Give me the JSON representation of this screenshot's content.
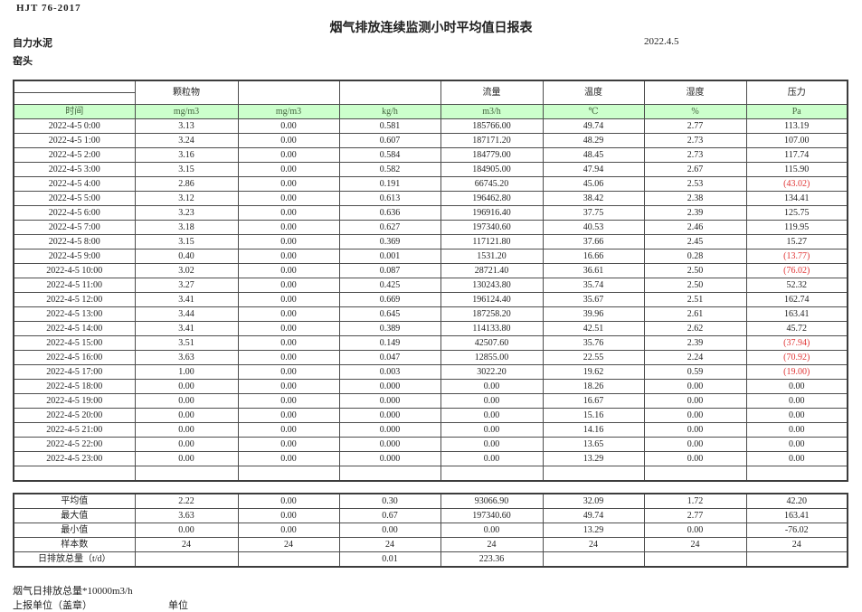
{
  "page": {
    "doc_code": "HJT  76-2017",
    "title": "烟气排放连续监测小时平均值日报表",
    "company": "自力水泥",
    "date": "2022.4.5",
    "station": "窑头"
  },
  "table": {
    "group_headers": [
      "",
      "颗粒物",
      "",
      "",
      "流量",
      "温度",
      "湿度",
      "压力"
    ],
    "unit_row": [
      "时间",
      "mg/m3",
      "mg/m3",
      "kg/h",
      "m3/h",
      "℃",
      "%",
      "Pa"
    ],
    "rows": [
      [
        "2022-4-5 0:00",
        "3.13",
        "0.00",
        "0.581",
        "185766.00",
        "49.74",
        "2.77",
        "113.19"
      ],
      [
        "2022-4-5 1:00",
        "3.24",
        "0.00",
        "0.607",
        "187171.20",
        "48.29",
        "2.73",
        "107.00"
      ],
      [
        "2022-4-5 2:00",
        "3.16",
        "0.00",
        "0.584",
        "184779.00",
        "48.45",
        "2.73",
        "117.74"
      ],
      [
        "2022-4-5 3:00",
        "3.15",
        "0.00",
        "0.582",
        "184905.00",
        "47.94",
        "2.67",
        "115.90"
      ],
      [
        "2022-4-5 4:00",
        "2.86",
        "0.00",
        "0.191",
        "66745.20",
        "45.06",
        "2.53",
        "(43.02)"
      ],
      [
        "2022-4-5 5:00",
        "3.12",
        "0.00",
        "0.613",
        "196462.80",
        "38.42",
        "2.38",
        "134.41"
      ],
      [
        "2022-4-5 6:00",
        "3.23",
        "0.00",
        "0.636",
        "196916.40",
        "37.75",
        "2.39",
        "125.75"
      ],
      [
        "2022-4-5 7:00",
        "3.18",
        "0.00",
        "0.627",
        "197340.60",
        "40.53",
        "2.46",
        "119.95"
      ],
      [
        "2022-4-5 8:00",
        "3.15",
        "0.00",
        "0.369",
        "117121.80",
        "37.66",
        "2.45",
        "15.27"
      ],
      [
        "2022-4-5 9:00",
        "0.40",
        "0.00",
        "0.001",
        "1531.20",
        "16.66",
        "0.28",
        "(13.77)"
      ],
      [
        "2022-4-5 10:00",
        "3.02",
        "0.00",
        "0.087",
        "28721.40",
        "36.61",
        "2.50",
        "(76.02)"
      ],
      [
        "2022-4-5 11:00",
        "3.27",
        "0.00",
        "0.425",
        "130243.80",
        "35.74",
        "2.50",
        "52.32"
      ],
      [
        "2022-4-5 12:00",
        "3.41",
        "0.00",
        "0.669",
        "196124.40",
        "35.67",
        "2.51",
        "162.74"
      ],
      [
        "2022-4-5 13:00",
        "3.44",
        "0.00",
        "0.645",
        "187258.20",
        "39.96",
        "2.61",
        "163.41"
      ],
      [
        "2022-4-5 14:00",
        "3.41",
        "0.00",
        "0.389",
        "114133.80",
        "42.51",
        "2.62",
        "45.72"
      ],
      [
        "2022-4-5 15:00",
        "3.51",
        "0.00",
        "0.149",
        "42507.60",
        "35.76",
        "2.39",
        "(37.94)"
      ],
      [
        "2022-4-5 16:00",
        "3.63",
        "0.00",
        "0.047",
        "12855.00",
        "22.55",
        "2.24",
        "(70.92)"
      ],
      [
        "2022-4-5 17:00",
        "1.00",
        "0.00",
        "0.003",
        "3022.20",
        "19.62",
        "0.59",
        "(19.00)"
      ],
      [
        "2022-4-5 18:00",
        "0.00",
        "0.00",
        "0.000",
        "0.00",
        "18.26",
        "0.00",
        "0.00"
      ],
      [
        "2022-4-5 19:00",
        "0.00",
        "0.00",
        "0.000",
        "0.00",
        "16.67",
        "0.00",
        "0.00"
      ],
      [
        "2022-4-5 20:00",
        "0.00",
        "0.00",
        "0.000",
        "0.00",
        "15.16",
        "0.00",
        "0.00"
      ],
      [
        "2022-4-5 21:00",
        "0.00",
        "0.00",
        "0.000",
        "0.00",
        "14.16",
        "0.00",
        "0.00"
      ],
      [
        "2022-4-5 22:00",
        "0.00",
        "0.00",
        "0.000",
        "0.00",
        "13.65",
        "0.00",
        "0.00"
      ],
      [
        "2022-4-5 23:00",
        "0.00",
        "0.00",
        "0.000",
        "0.00",
        "13.29",
        "0.00",
        "0.00"
      ]
    ],
    "summary": [
      {
        "label": "平均值",
        "values": [
          "2.22",
          "0.00",
          "0.30",
          "93066.90",
          "32.09",
          "1.72",
          "42.20"
        ]
      },
      {
        "label": "最大值",
        "values": [
          "3.63",
          "0.00",
          "0.67",
          "197340.60",
          "49.74",
          "2.77",
          "163.41"
        ]
      },
      {
        "label": "最小值",
        "values": [
          "0.00",
          "0.00",
          "0.00",
          "0.00",
          "13.29",
          "0.00",
          "-76.02"
        ]
      },
      {
        "label": "样本数",
        "values": [
          "24",
          "24",
          "24",
          "24",
          "24",
          "24",
          "24"
        ]
      },
      {
        "label": "日排放总量（t/d）",
        "values": [
          "",
          "",
          "0.01",
          "223.36",
          "",
          "",
          ""
        ]
      }
    ]
  },
  "footer": {
    "note": "烟气日排放总量*10000m3/h",
    "report_unit_label": "上报单位（盖章）",
    "unit_label": "单位"
  },
  "colors": {
    "header_fill": "#ccffcc",
    "negative_value": "#e03434",
    "grid": "#4d4d4d"
  }
}
